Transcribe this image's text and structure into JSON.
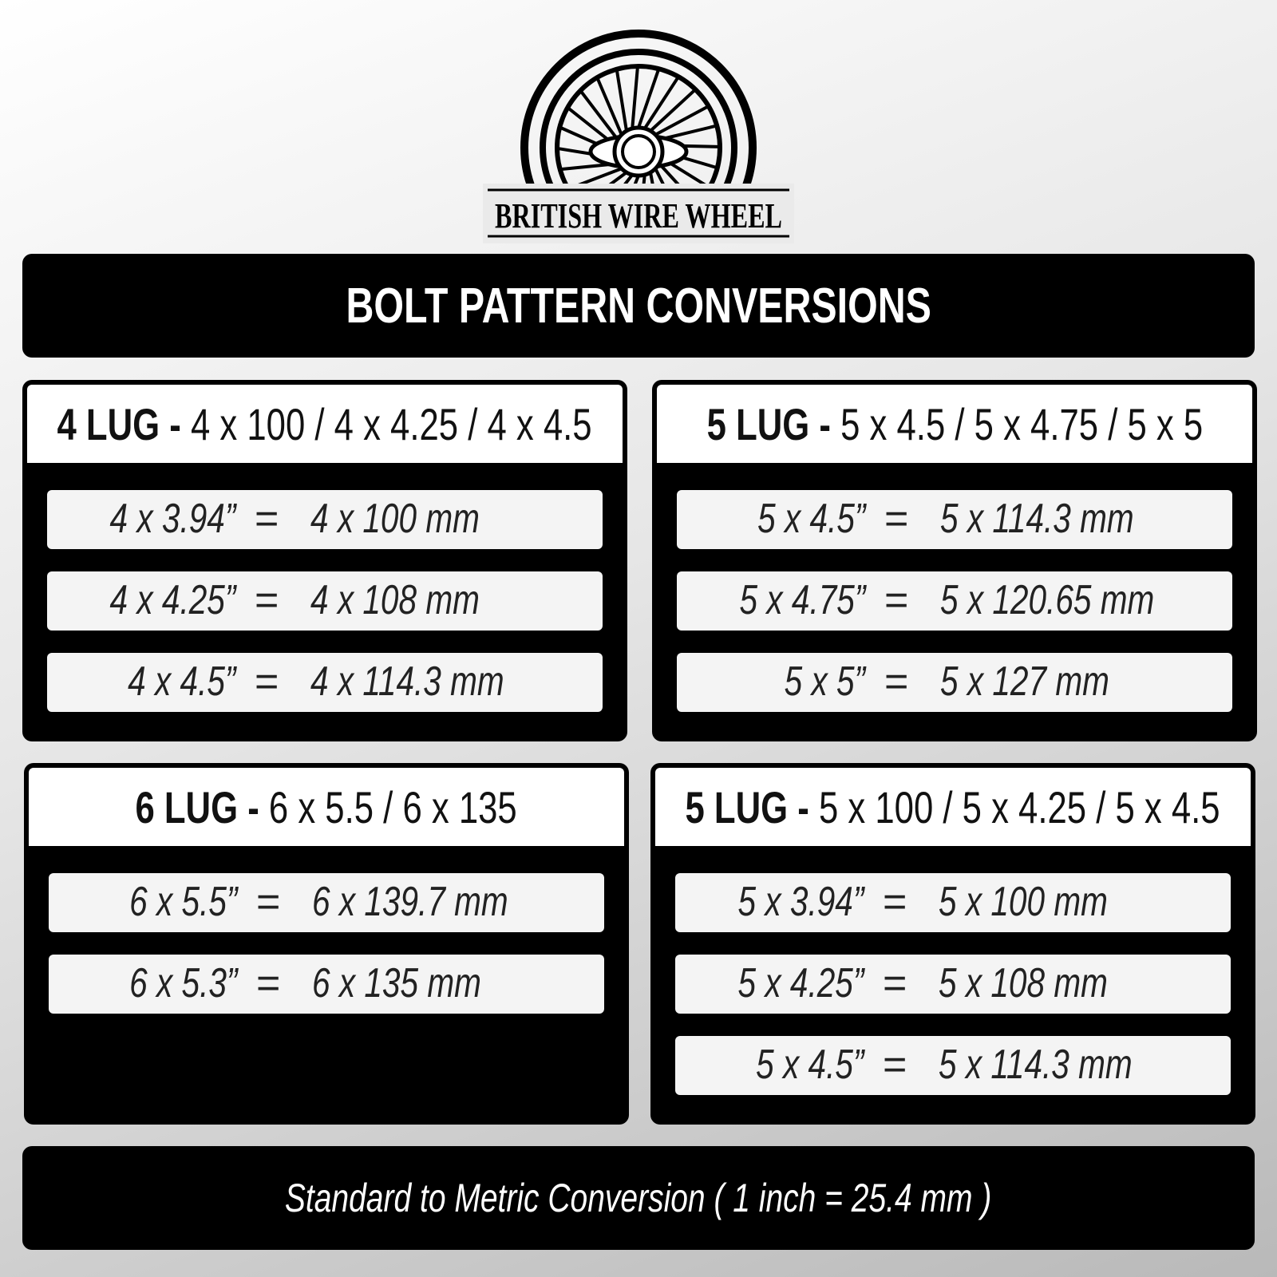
{
  "logo": {
    "text": "BRITISH WIRE WHEEL"
  },
  "header": {
    "title": "BOLT PATTERN CONVERSIONS"
  },
  "cards": [
    {
      "lug": "4 LUG -",
      "patterns": "4 x 100 / 4 x 4.25 / 4 x 4.5",
      "rows": [
        {
          "standard": "4 x 3.94”",
          "eq": "=",
          "metric": "4 x 100 mm"
        },
        {
          "standard": "4 x 4.25”",
          "eq": "=",
          "metric": "4 x 108 mm"
        },
        {
          "standard": "4 x 4.5”",
          "eq": "=",
          "metric": "4 x 114.3 mm"
        }
      ]
    },
    {
      "lug": "5 LUG -",
      "patterns": "5 x 4.5 / 5 x 4.75 / 5 x 5",
      "rows": [
        {
          "standard": "5 x 4.5”",
          "eq": "=",
          "metric": "5 x 114.3 mm"
        },
        {
          "standard": "5 x 4.75”",
          "eq": "=",
          "metric": "5 x 120.65 mm"
        },
        {
          "standard": "5 x 5”",
          "eq": "=",
          "metric": "5 x 127 mm"
        }
      ]
    },
    {
      "lug": "6 LUG -",
      "patterns": "6 x 5.5 / 6 x 135",
      "rows": [
        {
          "standard": "6 x 5.5”",
          "eq": "=",
          "metric": "6 x 139.7 mm"
        },
        {
          "standard": "6 x 5.3”",
          "eq": "=",
          "metric": "6 x 135 mm"
        }
      ]
    },
    {
      "lug": "5 LUG -",
      "patterns": "5 x 100 / 5 x 4.25 / 5 x 4.5",
      "rows": [
        {
          "standard": "5 x 3.94”",
          "eq": "=",
          "metric": "5 x 100 mm"
        },
        {
          "standard": "5 x 4.25”",
          "eq": "=",
          "metric": "5 x 108 mm"
        },
        {
          "standard": "5 x 4.5”",
          "eq": "=",
          "metric": "5 x 114.3 mm"
        }
      ]
    }
  ],
  "footer": {
    "text": "Standard to Metric Conversion ( 1 inch = 25.4 mm )"
  }
}
